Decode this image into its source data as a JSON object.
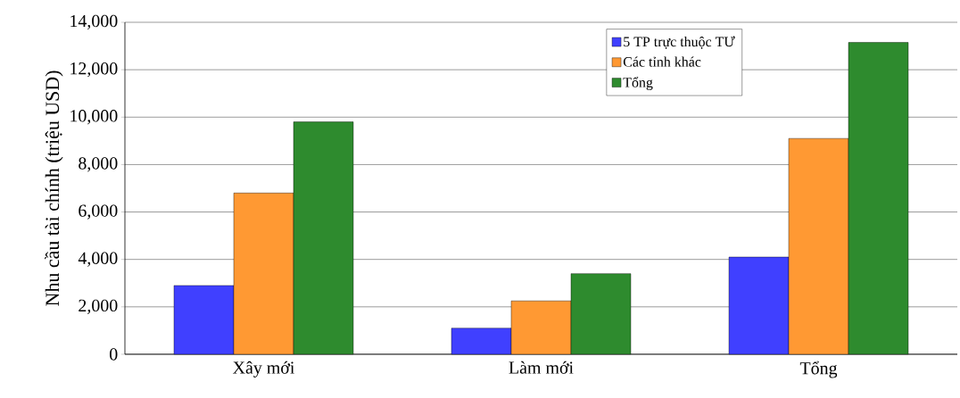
{
  "chart_data": {
    "type": "bar",
    "ylabel": "Nhu cầu tài chính  (triệu USD)",
    "categories": [
      "Xây mới",
      "Làm mới",
      "Tổng"
    ],
    "series": [
      {
        "name": "5 TP trực thuộc TƯ",
        "color": "#4040ff",
        "values": [
          2900,
          1100,
          4100
        ]
      },
      {
        "name": "Các tỉnh khác",
        "color": "#ff9933",
        "values": [
          6800,
          2250,
          9100
        ]
      },
      {
        "name": "Tổng",
        "color": "#2e8b2e",
        "values": [
          9800,
          3400,
          13150
        ]
      }
    ],
    "ylim": [
      0,
      14000
    ],
    "yticks": [
      0,
      {
        "value": 2000,
        "label": "2,000"
      },
      {
        "value": 4000,
        "label": "4,000"
      },
      {
        "value": 6000,
        "label": "6,000"
      },
      {
        "value": 8000,
        "label": "8,000"
      },
      {
        "value": 10000,
        "label": "10,000"
      },
      {
        "value": 12000,
        "label": "12,000"
      },
      {
        "value": 14000,
        "label": "14,000"
      }
    ],
    "grid": "y",
    "legend": "top"
  }
}
